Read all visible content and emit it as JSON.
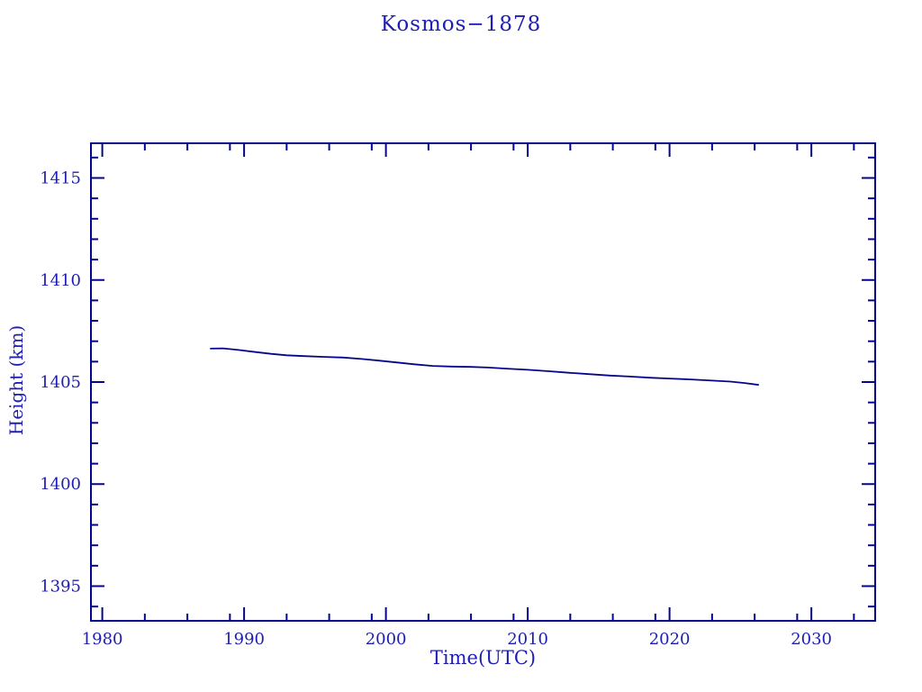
{
  "chart_data": {
    "type": "line",
    "title": "Kosmos−1878",
    "xlabel": "Time(UTC)",
    "ylabel": "Height (km)",
    "x_range": [
      1979.2,
      2034.5
    ],
    "y_range": [
      1393.3,
      1416.7
    ],
    "x_major_ticks": [
      1980,
      1990,
      2000,
      2010,
      2020,
      2030
    ],
    "x_minor_offsets": [
      3,
      6,
      9
    ],
    "y_major_ticks": [
      1395,
      1400,
      1405,
      1410,
      1415
    ],
    "y_minor_step": 1,
    "grid": false,
    "frame": true,
    "legend": "none",
    "colors": {
      "background": "#ffffff",
      "text": "#1e1eb4",
      "axis": "#06068c",
      "line": "#06068c"
    },
    "series": [
      {
        "name": "height",
        "points": [
          [
            1987.6,
            1406.64
          ],
          [
            1988.5,
            1406.65
          ],
          [
            1989.6,
            1406.57
          ],
          [
            1990.8,
            1406.47
          ],
          [
            1991.9,
            1406.38
          ],
          [
            1993.0,
            1406.31
          ],
          [
            1994.2,
            1406.27
          ],
          [
            1995.7,
            1406.23
          ],
          [
            1997.0,
            1406.2
          ],
          [
            1998.3,
            1406.13
          ],
          [
            1999.5,
            1406.05
          ],
          [
            2000.8,
            1405.96
          ],
          [
            2002.0,
            1405.87
          ],
          [
            2003.3,
            1405.79
          ],
          [
            2004.6,
            1405.76
          ],
          [
            2006.0,
            1405.74
          ],
          [
            2007.2,
            1405.71
          ],
          [
            2008.5,
            1405.66
          ],
          [
            2010.0,
            1405.6
          ],
          [
            2011.5,
            1405.53
          ],
          [
            2013.0,
            1405.45
          ],
          [
            2014.3,
            1405.39
          ],
          [
            2015.8,
            1405.32
          ],
          [
            2017.2,
            1405.27
          ],
          [
            2018.6,
            1405.21
          ],
          [
            2020.0,
            1405.17
          ],
          [
            2021.5,
            1405.13
          ],
          [
            2023.0,
            1405.07
          ],
          [
            2024.3,
            1405.02
          ],
          [
            2025.3,
            1404.95
          ],
          [
            2026.3,
            1404.86
          ]
        ]
      }
    ]
  }
}
